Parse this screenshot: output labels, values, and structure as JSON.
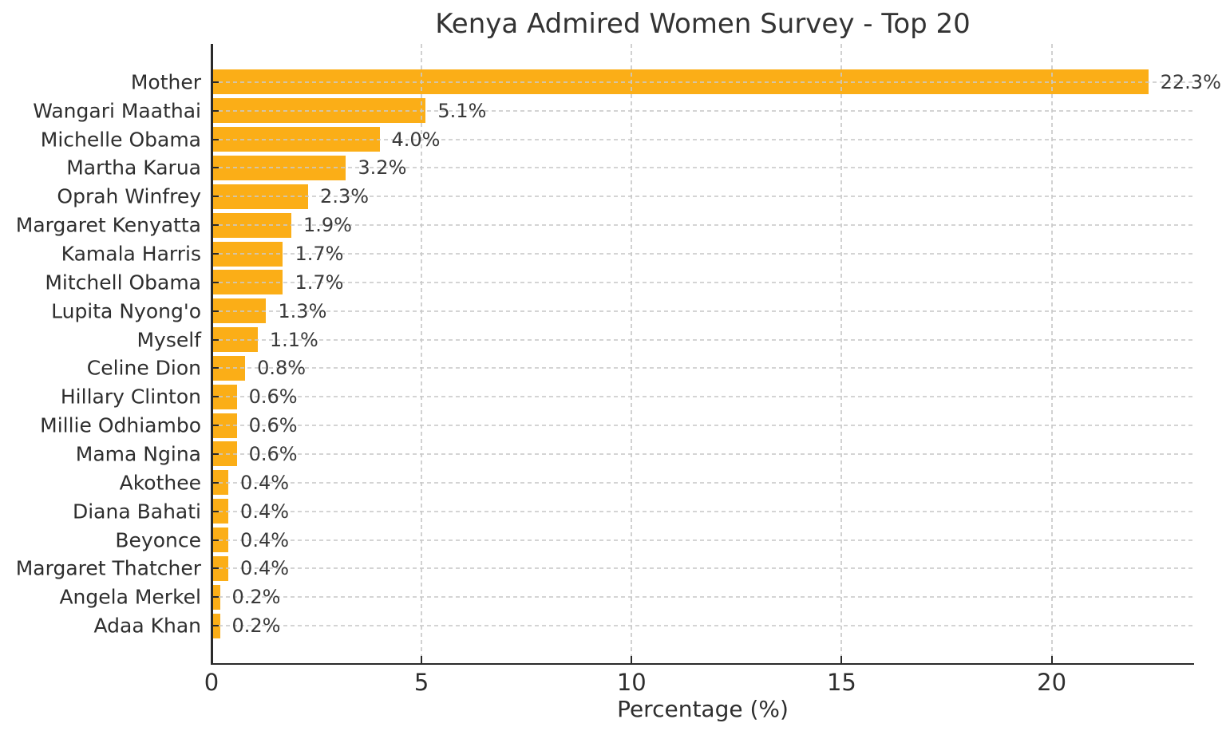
{
  "title": "Kenya Admired Women Survey - Top 20",
  "xlabel": "Percentage (%)",
  "chart_data": {
    "type": "bar",
    "orientation": "horizontal",
    "title": "Kenya Admired Women Survey - Top 20",
    "xlabel": "Percentage (%)",
    "ylabel": "",
    "categories": [
      "Mother",
      "Wangari Maathai",
      "Michelle Obama",
      "Martha Karua",
      "Oprah Winfrey",
      "Margaret Kenyatta",
      "Kamala Harris",
      "Mitchell Obama",
      "Lupita Nyong'o",
      "Myself",
      "Celine Dion",
      "Hillary Clinton",
      "Millie Odhiambo",
      "Mama Ngina",
      "Akothee",
      "Diana Bahati",
      "Beyonce",
      "Margaret Thatcher",
      "Angela Merkel",
      "Adaa Khan"
    ],
    "values": [
      22.3,
      5.1,
      4.0,
      3.2,
      2.3,
      1.9,
      1.7,
      1.7,
      1.3,
      1.1,
      0.8,
      0.6,
      0.6,
      0.6,
      0.4,
      0.4,
      0.4,
      0.4,
      0.2,
      0.2
    ],
    "value_labels": [
      "22.3%",
      "5.1%",
      "4.0%",
      "3.2%",
      "2.3%",
      "1.9%",
      "1.7%",
      "1.7%",
      "1.3%",
      "1.1%",
      "0.8%",
      "0.6%",
      "0.6%",
      "0.6%",
      "0.4%",
      "0.4%",
      "0.4%",
      "0.4%",
      "0.2%",
      "0.2%"
    ],
    "xticks": [
      0,
      5,
      10,
      15,
      20
    ],
    "xlim": [
      0,
      23.39
    ],
    "grid": "dashed gridlines on both axes, drawn over bars",
    "legend_position": "none",
    "colors": {
      "bar": "#FBAE17",
      "grid": "#c9c9c9",
      "text": "#2e2e2e",
      "title": "#333333",
      "spine": "#2a2a2a",
      "background": "#ffffff"
    }
  }
}
